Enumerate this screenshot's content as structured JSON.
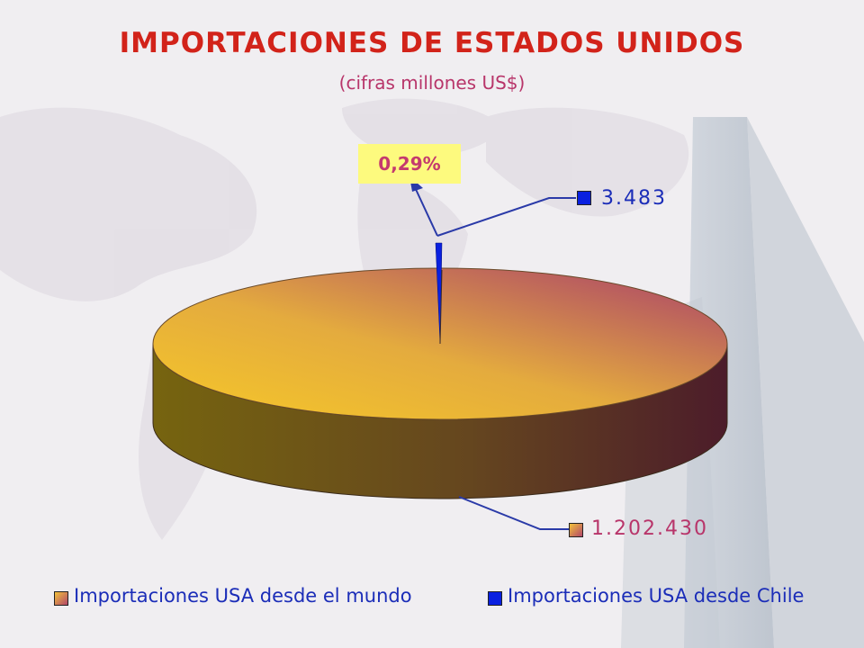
{
  "header": {
    "title": "IMPORTACIONES DE ESTADOS UNIDOS",
    "subtitle": "(cifras millones US$)"
  },
  "colors": {
    "title": "#d2231a",
    "subtitle": "#b8356a",
    "world_slice_light": "#f3c23a",
    "world_slice_dark": "#b2466a",
    "chile_slice": "#0a20e0",
    "percent_box": "#fdfa7e",
    "leader_lines": "#2a3aa8"
  },
  "chart_data": {
    "type": "pie",
    "title": "IMPORTACIONES DE ESTADOS UNIDOS",
    "subtitle": "(cifras millones US$)",
    "style": "3d",
    "legend_position": "bottom",
    "slices": [
      {
        "name": "Importaciones USA desde el mundo",
        "value": 1202430,
        "label": "1.202.430",
        "color": "#f3c23a"
      },
      {
        "name": "Importaciones USA desde Chile",
        "value": 3483,
        "label": "3.483",
        "color": "#0a20e0"
      }
    ],
    "annotation": {
      "text": "0,29%",
      "target": "Importaciones USA desde Chile"
    }
  }
}
